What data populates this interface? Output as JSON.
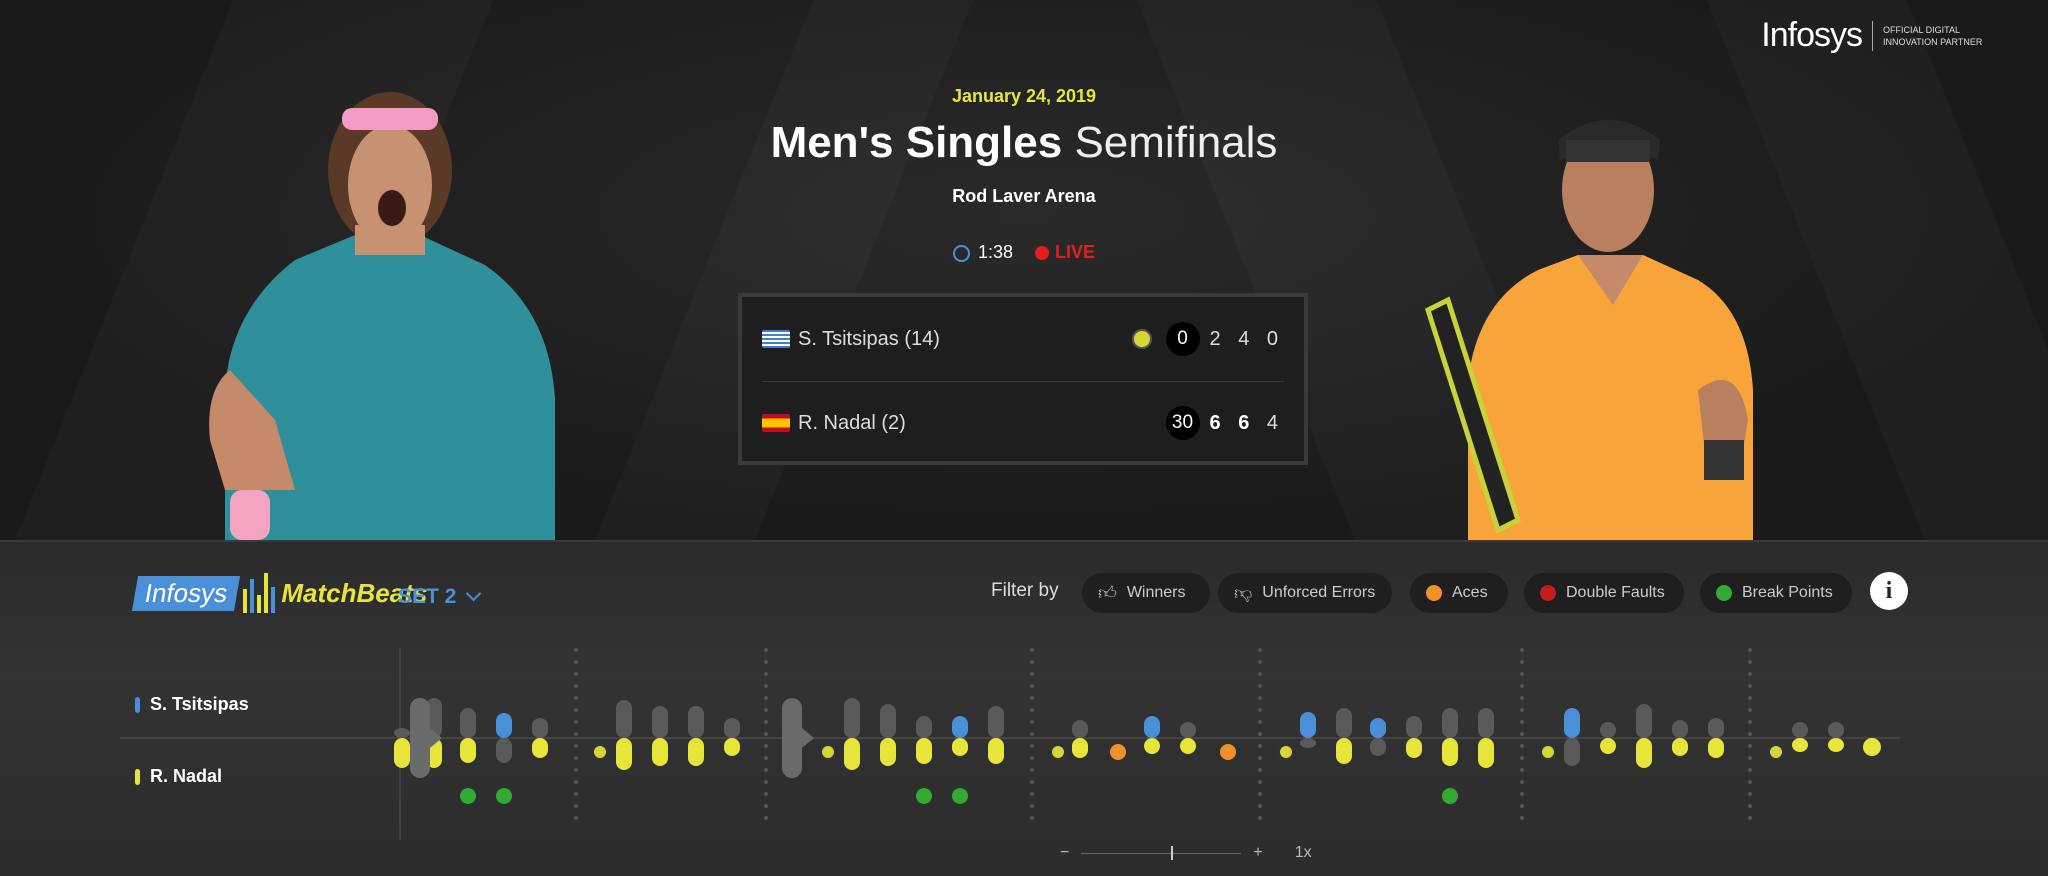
{
  "header": {
    "logo": "Infosys",
    "partner_line1": "OFFICIAL DIGITAL",
    "partner_line2": "INNOVATION PARTNER",
    "date": "January 24, 2019",
    "title_bold": "Men's Singles",
    "title_light": "Semifinals",
    "venue": "Rod Laver Arena",
    "duration": "1:38",
    "status": "LIVE"
  },
  "score": {
    "players": [
      {
        "name": "S. Tsitsipas (14)",
        "flag": "greece-flag",
        "serving": true,
        "points": "0",
        "sets": [
          "2",
          "4",
          "0"
        ],
        "bold_sets": []
      },
      {
        "name": "R. Nadal (2)",
        "flag": "spain-flag",
        "serving": false,
        "points": "30",
        "sets": [
          "6",
          "6",
          "4"
        ],
        "bold_sets": [
          0,
          1
        ]
      }
    ]
  },
  "matchbeats": {
    "brand_left": "Infosys",
    "brand_right": "MatchBeats",
    "set_selector": "SET 2",
    "filter_label": "Filter by",
    "filters": [
      {
        "label": "Winners",
        "icon": "thumbs-up-icon",
        "color": "#cccccc"
      },
      {
        "label": "Unforced Errors",
        "icon": "thumbs-down-icon",
        "color": "#cccccc"
      },
      {
        "label": "Aces",
        "icon": "ace-ball-icon",
        "color": "#f0902a"
      },
      {
        "label": "Double Faults",
        "icon": "double-fault-icon",
        "color": "#d02020"
      },
      {
        "label": "Break Points",
        "icon": "break-point-icon",
        "color": "#33aa33"
      }
    ],
    "legend": [
      {
        "name": "S. Tsitsipas",
        "color": "#4a90d9"
      },
      {
        "name": "R. Nadal",
        "color": "#e8e53a"
      }
    ],
    "zoom": {
      "minus": "−",
      "plus": "+",
      "level": "1x"
    }
  },
  "colors": {
    "player1": "#4a90d9",
    "player2": "#e8e53a",
    "neutral_bar": "#5a5a5a",
    "break_point": "#33aa33",
    "ace": "#f0902a"
  }
}
